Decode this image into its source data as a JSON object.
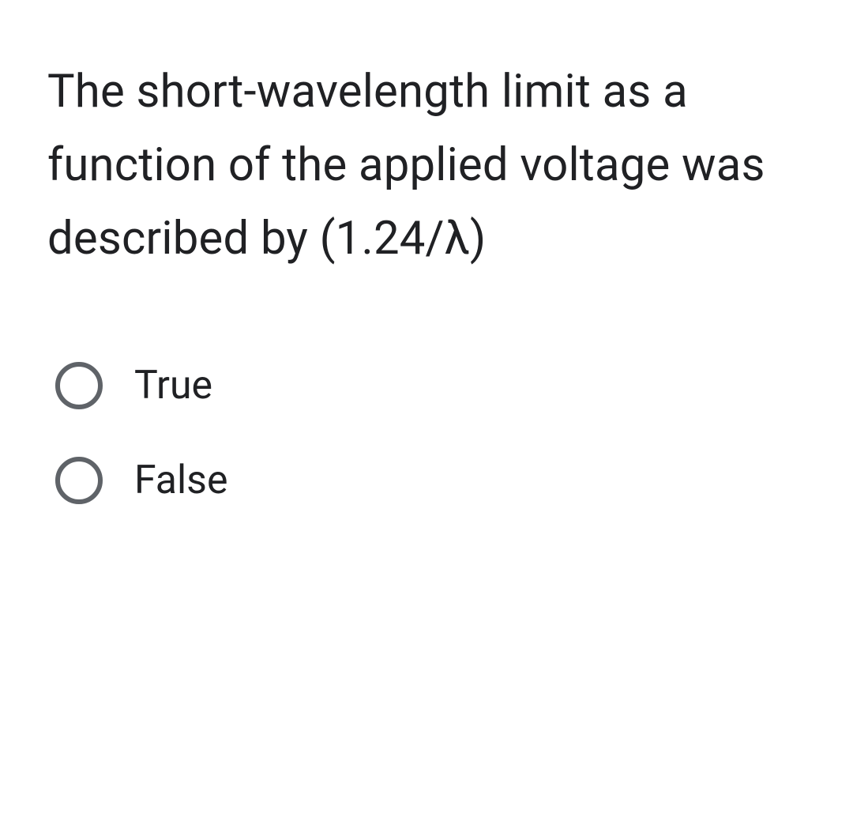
{
  "question": {
    "text": "The short-wavelength limit as a function of the applied voltage was described by (1.24/λ)",
    "text_color": "#202124",
    "font_size": 58,
    "options": [
      {
        "label": "True",
        "selected": false
      },
      {
        "label": "False",
        "selected": false
      }
    ],
    "option_font_size": 50,
    "radio_border_color": "#5f6368",
    "background_color": "#ffffff"
  }
}
